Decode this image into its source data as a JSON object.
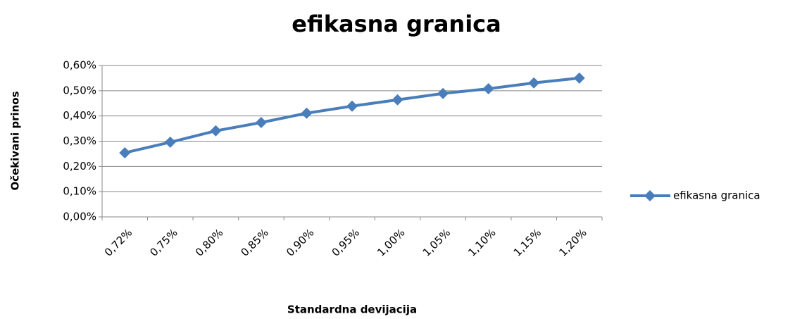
{
  "chart_data": {
    "type": "line",
    "title": "efikasna granica",
    "x_label": "Standardna devijacija",
    "y_label": "Očekivani prinos",
    "categories": [
      "0,72%",
      "0,75%",
      "0,80%",
      "0,85%",
      "0,90%",
      "0,95%",
      "1,00%",
      "1,05%",
      "1,10%",
      "1,15%",
      "1,20%"
    ],
    "series": [
      {
        "name": "efikasna granica",
        "color": "#4a7ebb",
        "values": [
          0.254,
          0.296,
          0.341,
          0.374,
          0.411,
          0.439,
          0.464,
          0.489,
          0.508,
          0.531,
          0.55
        ]
      }
    ],
    "ylim": [
      0,
      0.6
    ],
    "yticks": [
      {
        "value": 0,
        "label": "0,00%"
      },
      {
        "value": 0.1,
        "label": "0,10%"
      },
      {
        "value": 0.2,
        "label": "0,20%"
      },
      {
        "value": 0.3,
        "label": "0,30%"
      },
      {
        "value": 0.4,
        "label": "0,40%"
      },
      {
        "value": 0.5,
        "label": "0,50%"
      },
      {
        "value": 0.6,
        "label": "0,60%"
      }
    ],
    "grid": true,
    "legend": "right"
  }
}
